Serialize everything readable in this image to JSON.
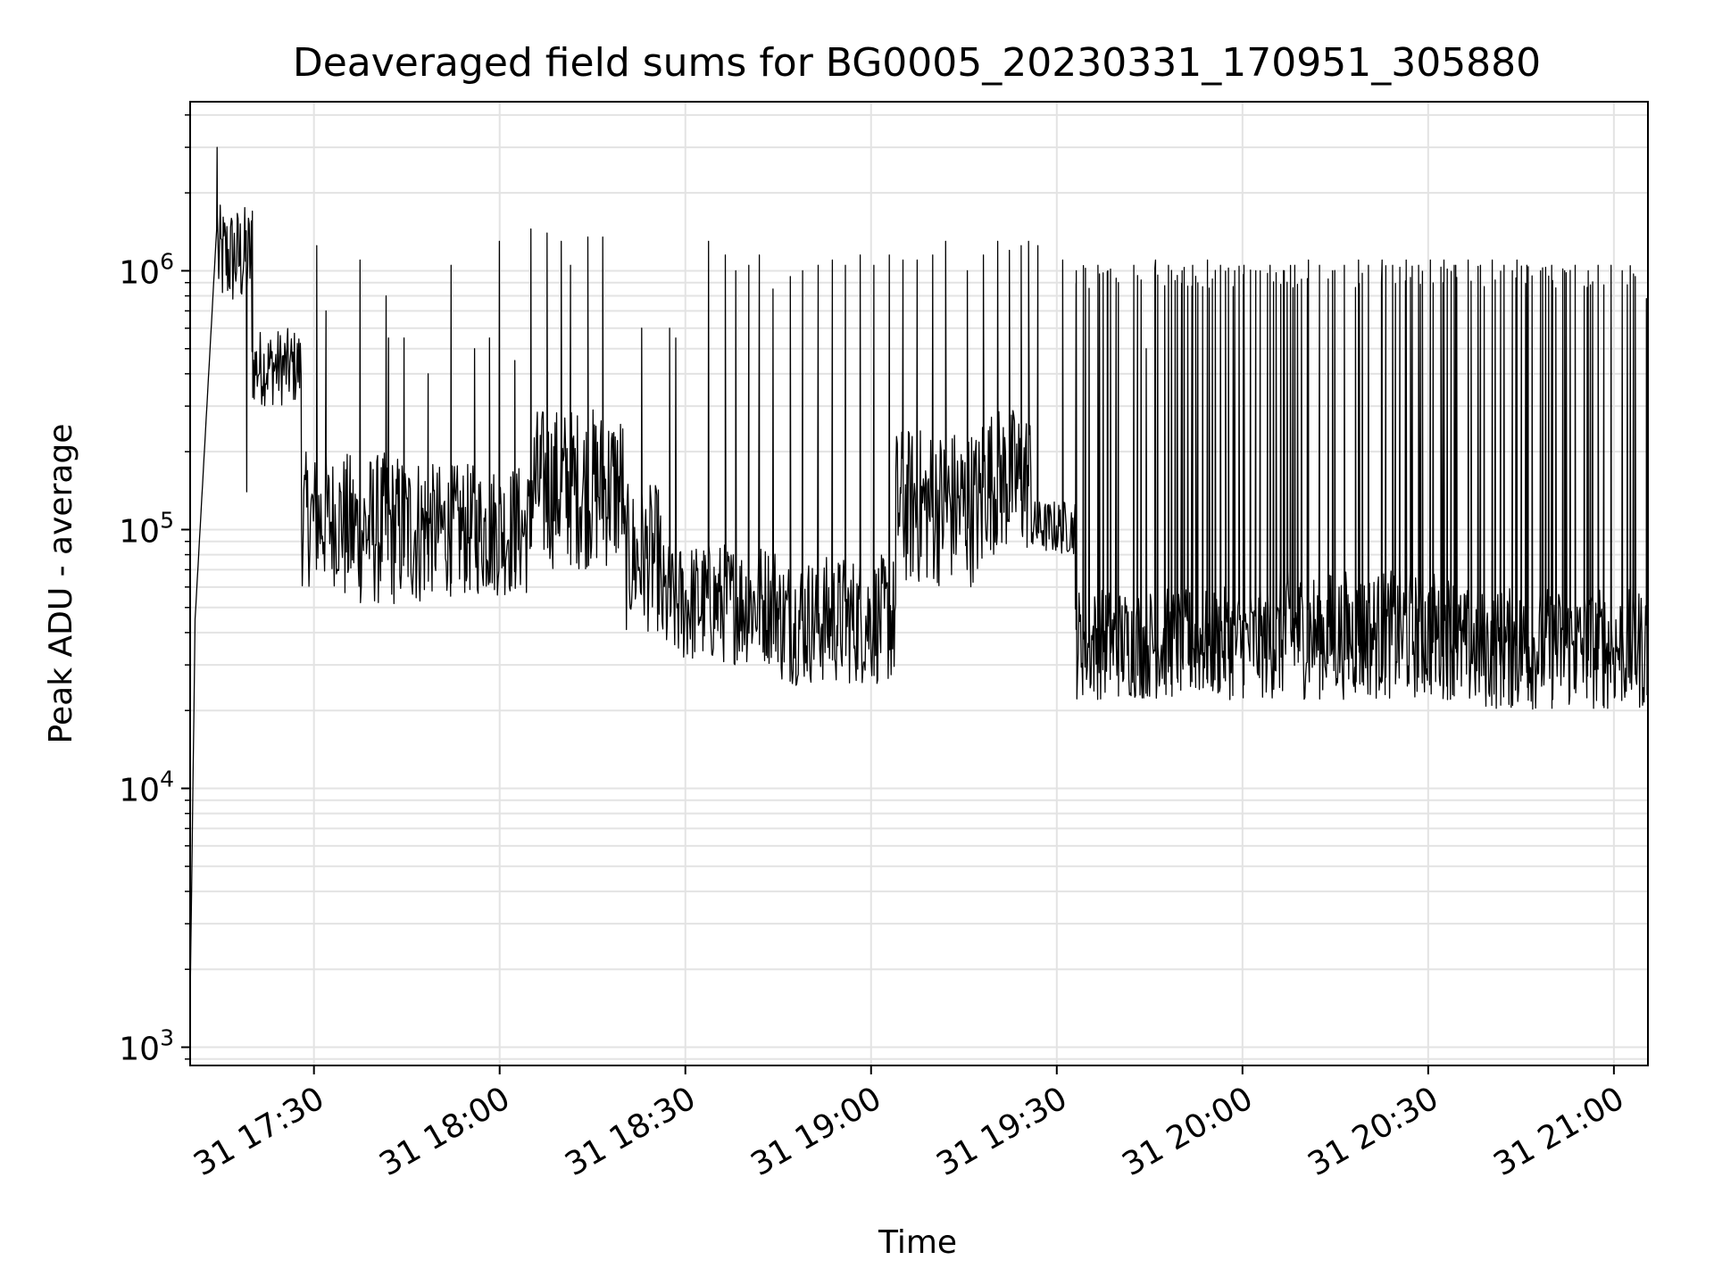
{
  "chart_data": {
    "type": "line",
    "title": "Deaveraged field sums for BG0005_20230331_170951_305880",
    "xlabel": "Time",
    "ylabel": "Peak ADU - average",
    "yscale": "log",
    "ylim": [
      850,
      4500000
    ],
    "xlim_minutes": [
      1030,
      1265.5
    ],
    "grid": true,
    "line_color": "#000000",
    "x_ticks": [
      {
        "minutes": 1050,
        "label": "31 17:30"
      },
      {
        "minutes": 1080,
        "label": "31 18:00"
      },
      {
        "minutes": 1110,
        "label": "31 18:30"
      },
      {
        "minutes": 1140,
        "label": "31 19:00"
      },
      {
        "minutes": 1170,
        "label": "31 19:30"
      },
      {
        "minutes": 1200,
        "label": "31 20:00"
      },
      {
        "minutes": 1230,
        "label": "31 20:30"
      },
      {
        "minutes": 1260,
        "label": "31 21:00"
      }
    ],
    "y_ticks": [
      {
        "value": 1000,
        "base": "10",
        "exp": "3"
      },
      {
        "value": 10000,
        "base": "10",
        "exp": "4"
      },
      {
        "value": 100000,
        "base": "10",
        "exp": "5"
      },
      {
        "value": 1000000,
        "base": "10",
        "exp": "6"
      }
    ],
    "segments": [
      {
        "t0": 1030.0,
        "t1": 1030.8,
        "lo": 1500,
        "hi": 45000,
        "mode": "rise"
      },
      {
        "t0": 1030.8,
        "t1": 1034.5,
        "lo": 45000,
        "hi": 1800000,
        "mode": "rise"
      },
      {
        "t0": 1034.5,
        "t1": 1040.0,
        "lo": 700000,
        "hi": 1800000,
        "mode": "noise"
      },
      {
        "t0": 1040.0,
        "t1": 1048.0,
        "lo": 300000,
        "hi": 600000,
        "mode": "noise"
      },
      {
        "t0": 1048.0,
        "t1": 1055.0,
        "lo": 60000,
        "hi": 200000,
        "mode": "noise"
      },
      {
        "t0": 1055.0,
        "t1": 1068.0,
        "lo": 50000,
        "hi": 200000,
        "mode": "noise"
      },
      {
        "t0": 1068.0,
        "t1": 1085.0,
        "lo": 55000,
        "hi": 180000,
        "mode": "noise"
      },
      {
        "t0": 1085.0,
        "t1": 1100.0,
        "lo": 70000,
        "hi": 300000,
        "mode": "noise"
      },
      {
        "t0": 1100.0,
        "t1": 1106.0,
        "lo": 40000,
        "hi": 150000,
        "mode": "noise"
      },
      {
        "t0": 1106.0,
        "t1": 1125.0,
        "lo": 30000,
        "hi": 90000,
        "mode": "noise"
      },
      {
        "t0": 1125.0,
        "t1": 1144.0,
        "lo": 25000,
        "hi": 80000,
        "mode": "noise"
      },
      {
        "t0": 1144.0,
        "t1": 1158.0,
        "lo": 60000,
        "hi": 250000,
        "mode": "noise"
      },
      {
        "t0": 1158.0,
        "t1": 1166.0,
        "lo": 80000,
        "hi": 300000,
        "mode": "noise"
      },
      {
        "t0": 1166.0,
        "t1": 1173.0,
        "lo": 80000,
        "hi": 130000,
        "mode": "noise"
      },
      {
        "t0": 1173.0,
        "t1": 1206.0,
        "lo": 22000,
        "hi": 60000,
        "mode": "noise"
      },
      {
        "t0": 1206.0,
        "t1": 1235.0,
        "lo": 22000,
        "hi": 70000,
        "mode": "noise"
      },
      {
        "t0": 1235.0,
        "t1": 1265.5,
        "lo": 20000,
        "hi": 60000,
        "mode": "noise"
      }
    ],
    "spikes": [
      {
        "t": 1034.4,
        "value": 3000000
      },
      {
        "t": 1040.1,
        "value": 1700000
      },
      {
        "t": 1039.2,
        "value": 140000
      },
      {
        "t": 1050.5,
        "value": 1250000
      },
      {
        "t": 1052.0,
        "value": 700000
      },
      {
        "t": 1057.5,
        "value": 1100000
      },
      {
        "t": 1061.7,
        "value": 800000
      },
      {
        "t": 1062.1,
        "value": 550000
      },
      {
        "t": 1064.6,
        "value": 550000
      },
      {
        "t": 1068.5,
        "value": 400000
      },
      {
        "t": 1072.2,
        "value": 1050000
      },
      {
        "t": 1076.0,
        "value": 500000
      },
      {
        "t": 1078.4,
        "value": 550000
      },
      {
        "t": 1080.0,
        "value": 1300000
      },
      {
        "t": 1082.5,
        "value": 450000
      },
      {
        "t": 1085.1,
        "value": 1450000
      },
      {
        "t": 1087.7,
        "value": 1400000
      },
      {
        "t": 1090.0,
        "value": 1300000
      },
      {
        "t": 1091.5,
        "value": 1050000
      },
      {
        "t": 1094.3,
        "value": 1350000
      },
      {
        "t": 1096.7,
        "value": 1350000
      },
      {
        "t": 1103.0,
        "value": 600000
      },
      {
        "t": 1107.5,
        "value": 600000
      },
      {
        "t": 1108.5,
        "value": 550000
      },
      {
        "t": 1113.8,
        "value": 1300000
      },
      {
        "t": 1116.5,
        "value": 1150000
      },
      {
        "t": 1118.2,
        "value": 1000000
      },
      {
        "t": 1120.3,
        "value": 1050000
      },
      {
        "t": 1122.0,
        "value": 1150000
      },
      {
        "t": 1124.2,
        "value": 850000
      },
      {
        "t": 1127.0,
        "value": 950000
      },
      {
        "t": 1129.0,
        "value": 1000000
      },
      {
        "t": 1131.5,
        "value": 1050000
      },
      {
        "t": 1133.8,
        "value": 1100000
      },
      {
        "t": 1135.9,
        "value": 1050000
      },
      {
        "t": 1138.3,
        "value": 1150000
      },
      {
        "t": 1140.5,
        "value": 1050000
      },
      {
        "t": 1143.0,
        "value": 1150000
      },
      {
        "t": 1145.2,
        "value": 1100000
      },
      {
        "t": 1147.5,
        "value": 1100000
      },
      {
        "t": 1150.0,
        "value": 1150000
      },
      {
        "t": 1152.1,
        "value": 1300000
      },
      {
        "t": 1155.6,
        "value": 1000000
      },
      {
        "t": 1158.2,
        "value": 1150000
      },
      {
        "t": 1160.5,
        "value": 1300000
      },
      {
        "t": 1162.4,
        "value": 1200000
      },
      {
        "t": 1164.3,
        "value": 1250000
      },
      {
        "t": 1165.5,
        "value": 1300000
      },
      {
        "t": 1167.0,
        "value": 1250000
      },
      {
        "t": 1171.0,
        "value": 1100000
      },
      {
        "t": 1173.2,
        "value": 1000000
      },
      {
        "t": 1176.7,
        "value": 1050000
      },
      {
        "t": 1178.3,
        "value": 1000000
      },
      {
        "t": 1180.0,
        "value": 900000
      },
      {
        "t": 1182.5,
        "value": 1050000
      },
      {
        "t": 1184.5,
        "value": 500000
      },
      {
        "t": 1186.0,
        "value": 1100000
      },
      {
        "t": 1188.1,
        "value": 1050000
      },
      {
        "t": 1190.3,
        "value": 1000000
      },
      {
        "t": 1192.0,
        "value": 1050000
      },
      {
        "t": 1194.4,
        "value": 1100000
      },
      {
        "t": 1196.5,
        "value": 1050000
      },
      {
        "t": 1198.8,
        "value": 1000000
      },
      {
        "t": 1200.3,
        "value": 1050000
      },
      {
        "t": 1202.2,
        "value": 1000000
      },
      {
        "t": 1204.5,
        "value": 1050000
      },
      {
        "t": 1206.8,
        "value": 1000000
      },
      {
        "t": 1208.5,
        "value": 1050000
      },
      {
        "t": 1210.7,
        "value": 1100000
      },
      {
        "t": 1212.5,
        "value": 1050000
      },
      {
        "t": 1214.6,
        "value": 1000000
      },
      {
        "t": 1216.5,
        "value": 1050000
      },
      {
        "t": 1218.8,
        "value": 1100000
      },
      {
        "t": 1220.4,
        "value": 1050000
      },
      {
        "t": 1222.6,
        "value": 1100000
      },
      {
        "t": 1224.3,
        "value": 1050000
      },
      {
        "t": 1226.5,
        "value": 1100000
      },
      {
        "t": 1228.5,
        "value": 1050000
      },
      {
        "t": 1230.4,
        "value": 1100000
      },
      {
        "t": 1232.6,
        "value": 1100000
      },
      {
        "t": 1234.5,
        "value": 1050000
      },
      {
        "t": 1236.5,
        "value": 1100000
      },
      {
        "t": 1238.5,
        "value": 1050000
      },
      {
        "t": 1240.4,
        "value": 1100000
      },
      {
        "t": 1242.3,
        "value": 1050000
      },
      {
        "t": 1244.4,
        "value": 1100000
      },
      {
        "t": 1246.0,
        "value": 1050000
      },
      {
        "t": 1248.2,
        "value": 1000000
      },
      {
        "t": 1250.0,
        "value": 1050000
      },
      {
        "t": 1252.1,
        "value": 1000000
      },
      {
        "t": 1253.8,
        "value": 1050000
      },
      {
        "t": 1255.9,
        "value": 1000000
      },
      {
        "t": 1257.5,
        "value": 1050000
      },
      {
        "t": 1259.6,
        "value": 1050000
      },
      {
        "t": 1261.4,
        "value": 1000000
      },
      {
        "t": 1263.5,
        "value": 950000
      },
      {
        "t": 1265.3,
        "value": 780000
      }
    ],
    "dense_spike_ranges": [
      {
        "t0": 1173.0,
        "t1": 1265.5,
        "step": 0.55,
        "hi": 1000000
      }
    ]
  }
}
